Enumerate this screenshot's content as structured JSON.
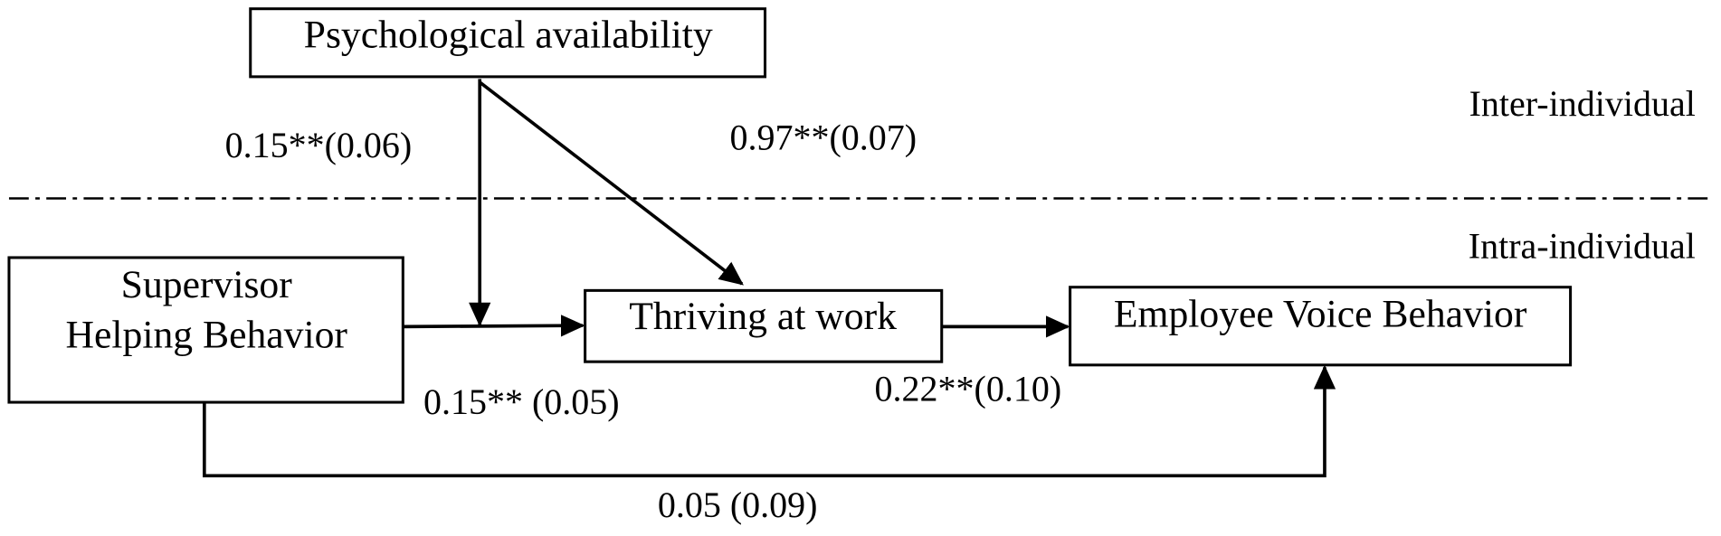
{
  "nodes": [
    {
      "label": [
        "Psychological availability"
      ]
    },
    {
      "label": [
        "Supervisor",
        "Helping Behavior"
      ]
    },
    {
      "label": [
        "Thriving at work"
      ]
    },
    {
      "label": [
        "Employee Voice Behavior"
      ]
    }
  ],
  "levels": [
    "Inter-individual",
    "Intra-individual"
  ],
  "edges": [
    {
      "label": "0.15**(0.06)"
    },
    {
      "label": "0.97**(0.07)"
    },
    {
      "label": "0.15** (0.05)"
    },
    {
      "label": "0.22**(0.10)"
    },
    {
      "label": "0.05 (0.09)"
    }
  ]
}
